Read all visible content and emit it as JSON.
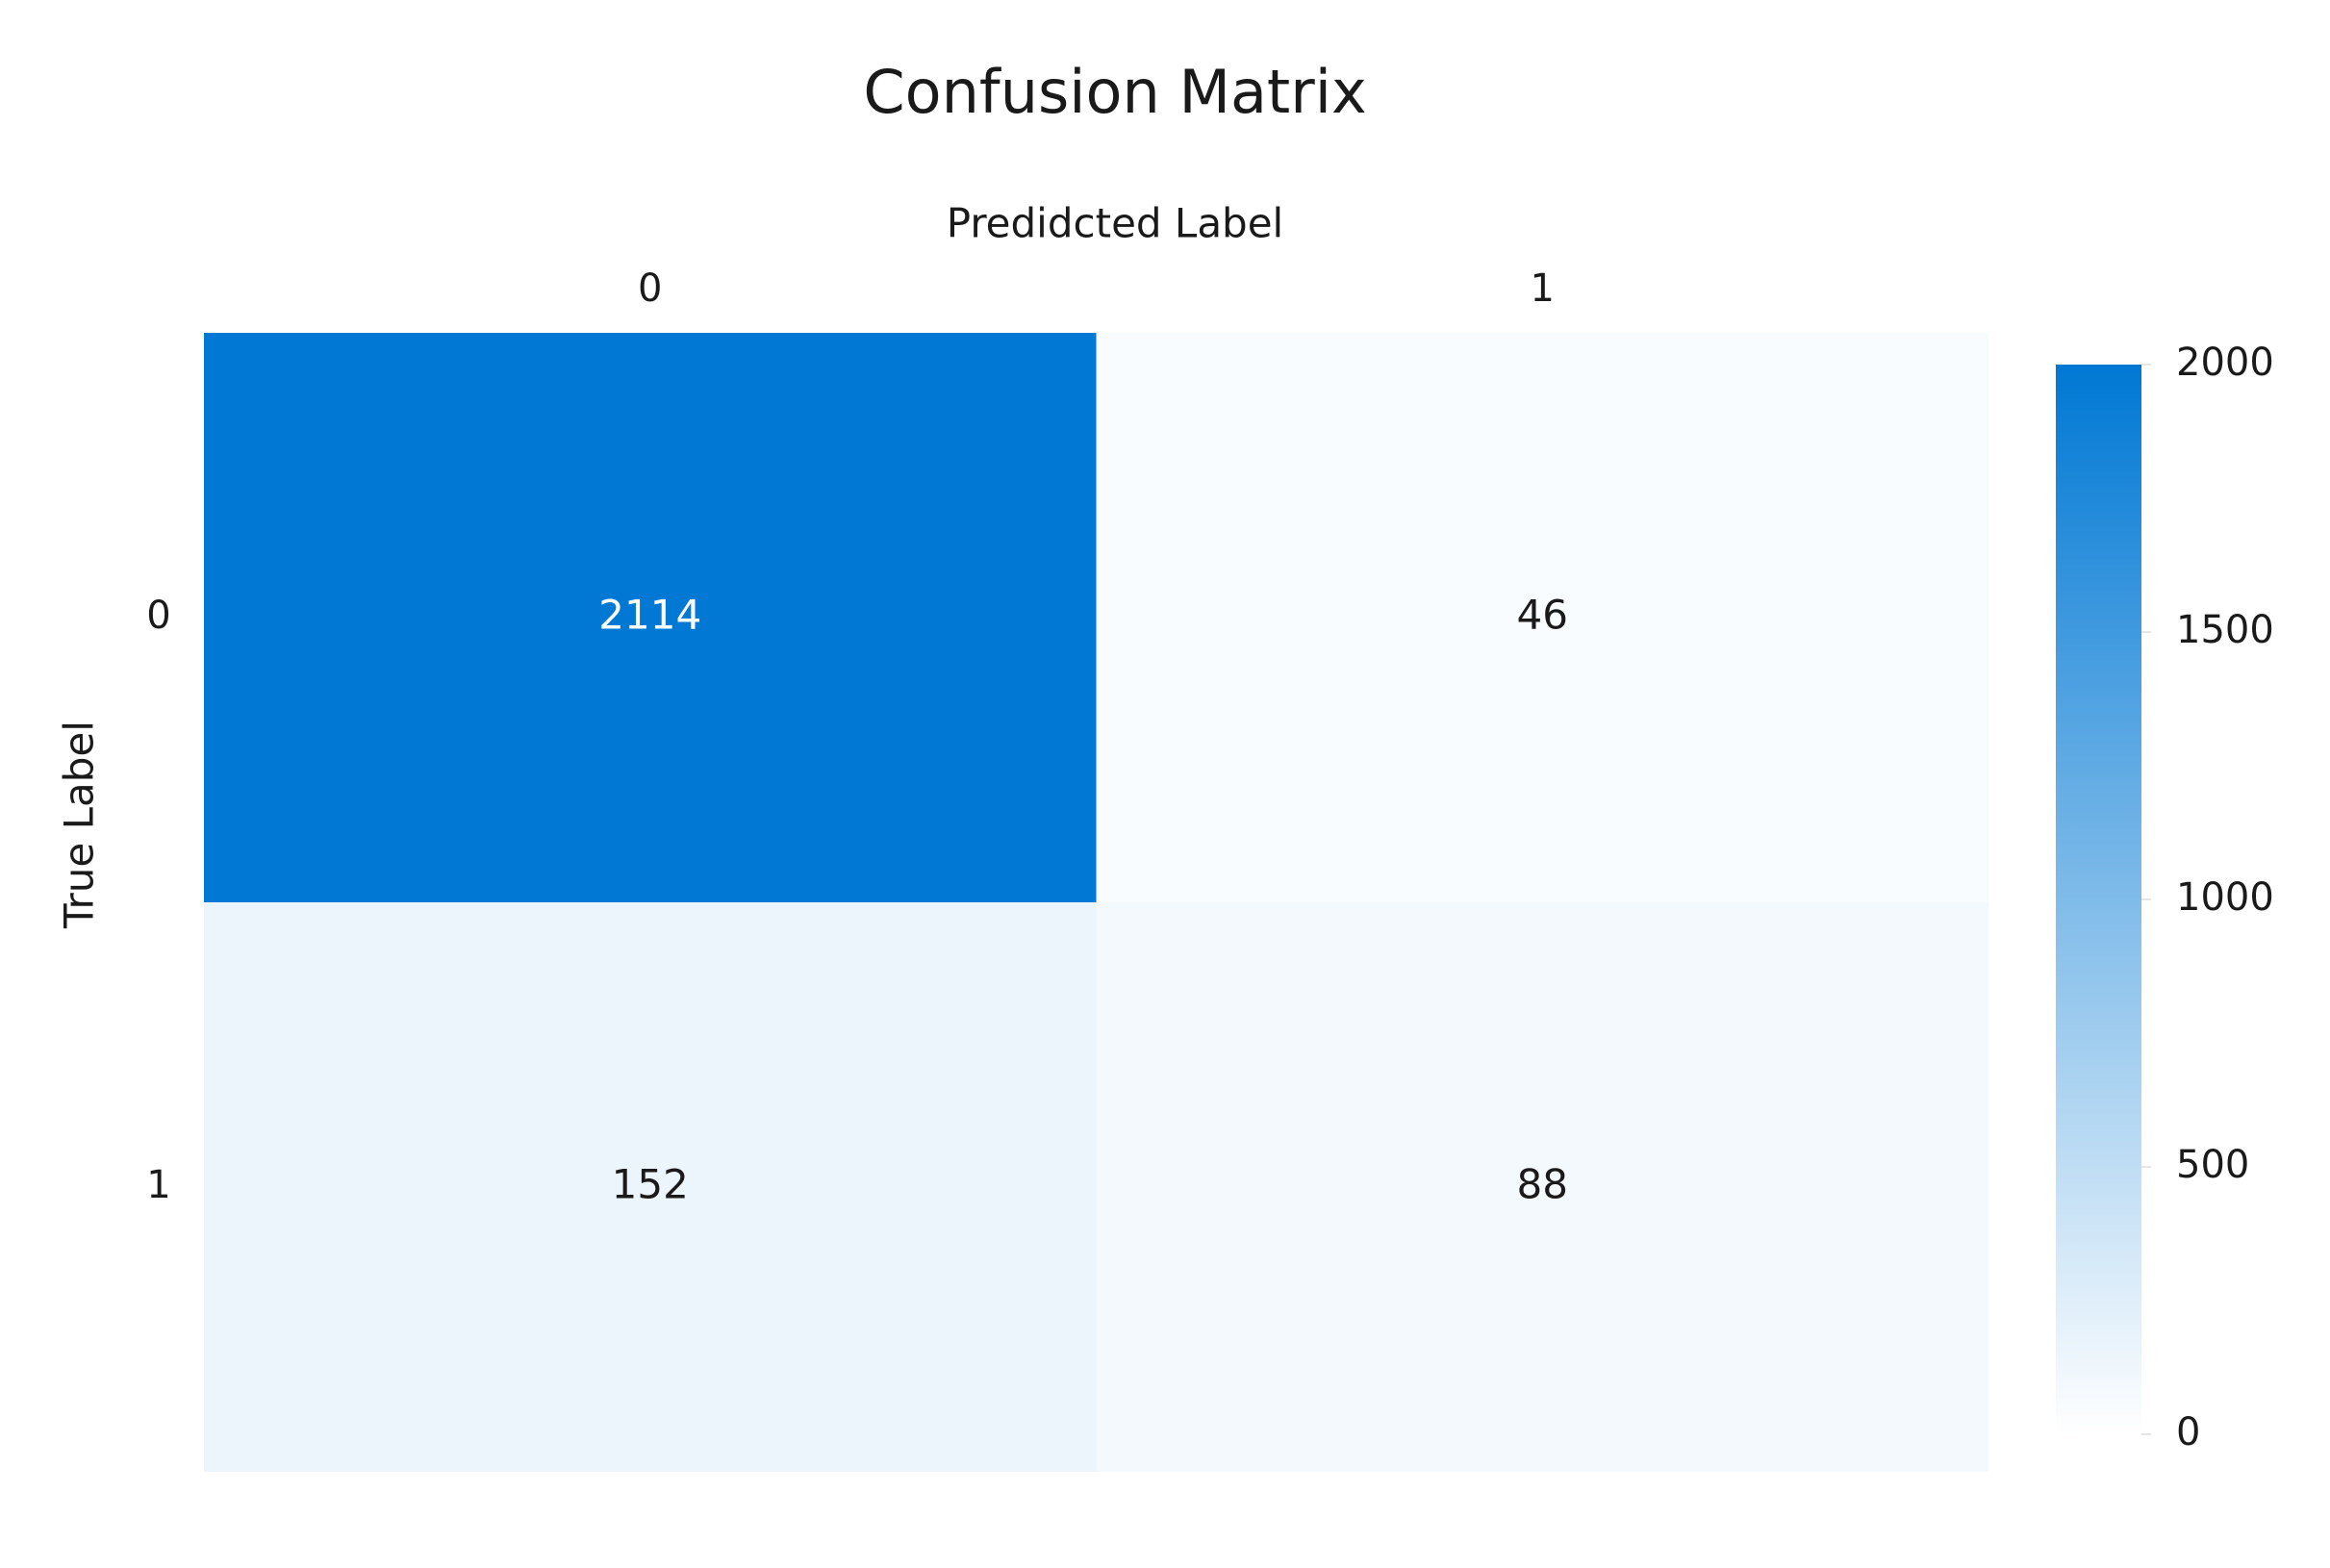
{
  "chart_data": {
    "type": "heatmap",
    "title": "Confusion Matrix",
    "x_label": "Predidcted Label",
    "y_label": "True Label",
    "x_categories": [
      "0",
      "1"
    ],
    "y_categories": [
      "0",
      "1"
    ],
    "values": [
      [
        2114,
        46
      ],
      [
        152,
        88
      ]
    ],
    "cmap": [
      "#ffffff",
      "#0078d4"
    ],
    "clim": [
      0,
      2000
    ],
    "cticks": [
      0,
      500,
      1000,
      1500,
      2000
    ]
  }
}
